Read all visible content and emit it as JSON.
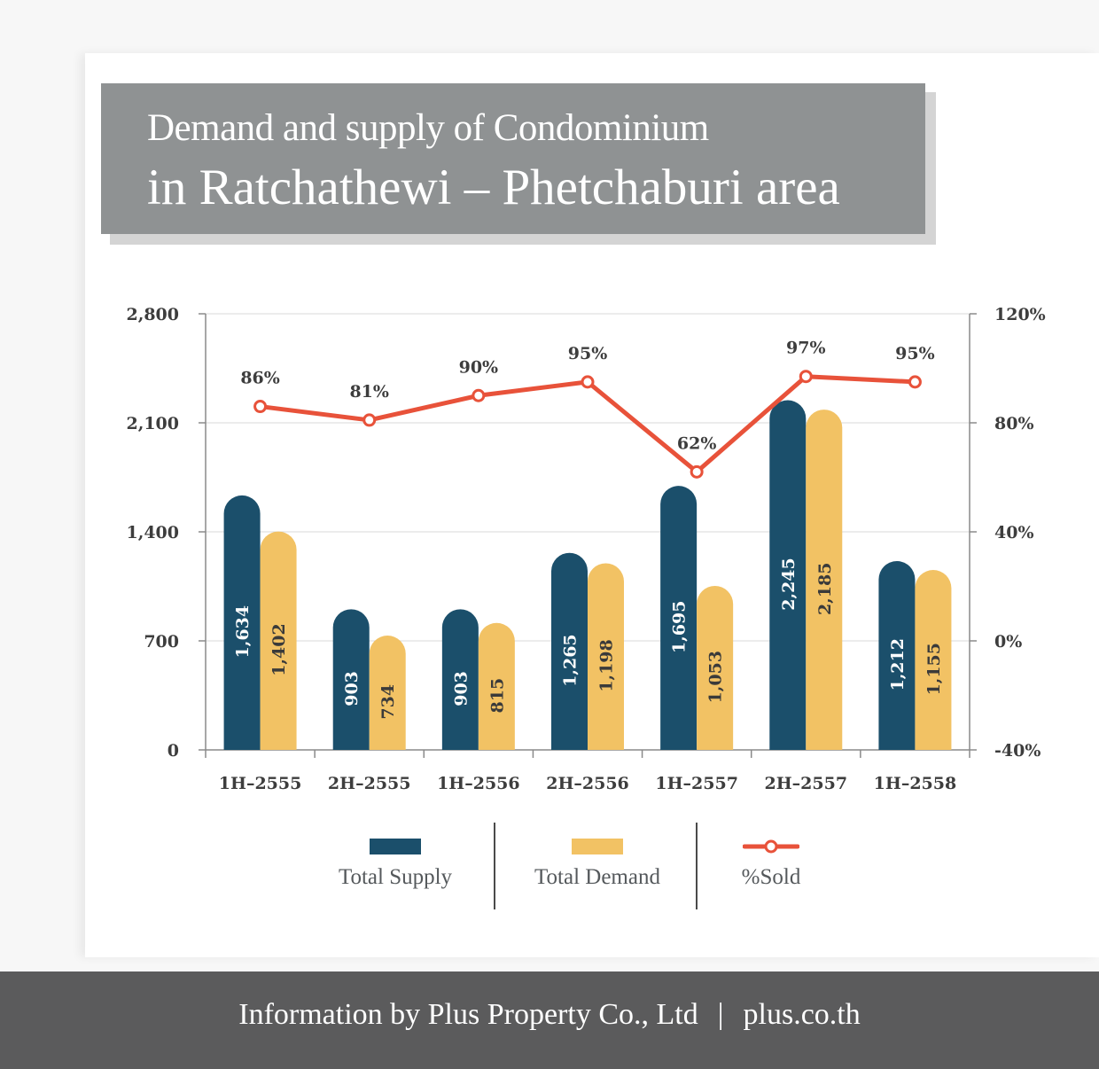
{
  "title": {
    "line1": "Demand and supply of Condominium",
    "line2": "in Ratchathewi – Phetchaburi area"
  },
  "chart_data": {
    "type": "bar",
    "categories": [
      "1H–2555",
      "2H–2555",
      "1H–2556",
      "2H–2556",
      "1H–2557",
      "2H–2557",
      "1H–2558"
    ],
    "series": [
      {
        "name": "Total Supply",
        "kind": "bar",
        "color": "#1b4f6b",
        "values": [
          1634,
          903,
          903,
          1265,
          1695,
          2245,
          1212
        ],
        "labels": [
          "1,634",
          "903",
          "903",
          "1,265",
          "1,695",
          "2,245",
          "1,212"
        ]
      },
      {
        "name": "Total Demand",
        "kind": "bar",
        "color": "#f2c264",
        "values": [
          1402,
          734,
          815,
          1198,
          1053,
          2185,
          1155
        ],
        "labels": [
          "1,402",
          "734",
          "815",
          "1,198",
          "1,053",
          "2,185",
          "1,155"
        ]
      },
      {
        "name": "%Sold",
        "kind": "line",
        "axis": "right",
        "color": "#e8523a",
        "values": [
          86,
          81,
          90,
          95,
          62,
          97,
          95
        ],
        "labels": [
          "86%",
          "81%",
          "90%",
          "95%",
          "62%",
          "97%",
          "95%"
        ]
      }
    ],
    "y_left": {
      "range": [
        0,
        2800
      ],
      "ticks": [
        0,
        700,
        1400,
        2100,
        2800
      ],
      "tick_labels": [
        "0",
        "700",
        "1,400",
        "2,100",
        "2,800"
      ]
    },
    "y_right": {
      "range": [
        -40,
        120
      ],
      "ticks": [
        -40,
        0,
        40,
        80,
        120
      ],
      "tick_labels": [
        "-40%",
        "0%",
        "40%",
        "80%",
        "120%"
      ]
    },
    "grid": true,
    "legend_position": "bottom"
  },
  "legend": {
    "supply": "Total Supply",
    "demand": "Total Demand",
    "sold": "%Sold"
  },
  "footer": {
    "company": "Information by Plus Property Co., Ltd",
    "separator": "|",
    "website": "plus.co.th"
  },
  "colors": {
    "supply": "#1b4f6b",
    "demand": "#f2c264",
    "sold": "#e8523a",
    "title_bg": "#8f9293",
    "footer_bg": "#5b5b5c"
  }
}
